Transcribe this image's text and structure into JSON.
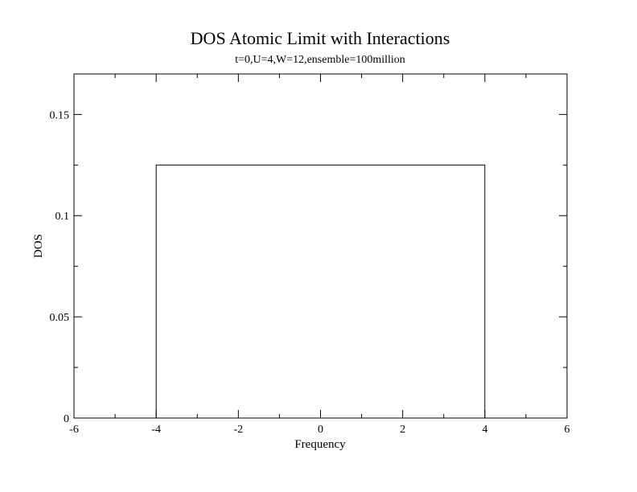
{
  "chart_data": {
    "type": "line",
    "title": "DOS Atomic Limit with Interactions",
    "subtitle": "t=0,U=4,W=12,ensemble=100million",
    "xlabel": "Frequency",
    "ylabel": "DOS",
    "xlim": [
      -6,
      6
    ],
    "ylim": [
      0,
      0.17
    ],
    "xticks": [
      -6,
      -4,
      -2,
      0,
      2,
      4,
      6
    ],
    "xtick_labels": [
      "-6",
      "-4",
      "-2",
      "0",
      "2",
      "4",
      "6"
    ],
    "yticks": [
      0,
      0.05,
      0.1,
      0.15
    ],
    "ytick_labels": [
      "0",
      "0.05",
      "0.1",
      "0.15"
    ],
    "grid": false,
    "line_color": "#000000",
    "series": [
      {
        "x": [
          -4.0,
          -4.0,
          -4.0,
          -3.5,
          -3.0,
          -2.5,
          -2.0,
          -1.5,
          -1.0,
          -0.5,
          0.0,
          0.5,
          1.0,
          1.5,
          2.0,
          2.5,
          3.0,
          3.5,
          4.0,
          4.0,
          4.0
        ],
        "values": [
          0,
          0.083,
          0.125,
          0.125,
          0.125,
          0.125,
          0.125,
          0.125,
          0.125,
          0.125,
          0.125,
          0.125,
          0.125,
          0.125,
          0.125,
          0.125,
          0.125,
          0.125,
          0.125,
          0.083,
          0
        ]
      }
    ]
  }
}
